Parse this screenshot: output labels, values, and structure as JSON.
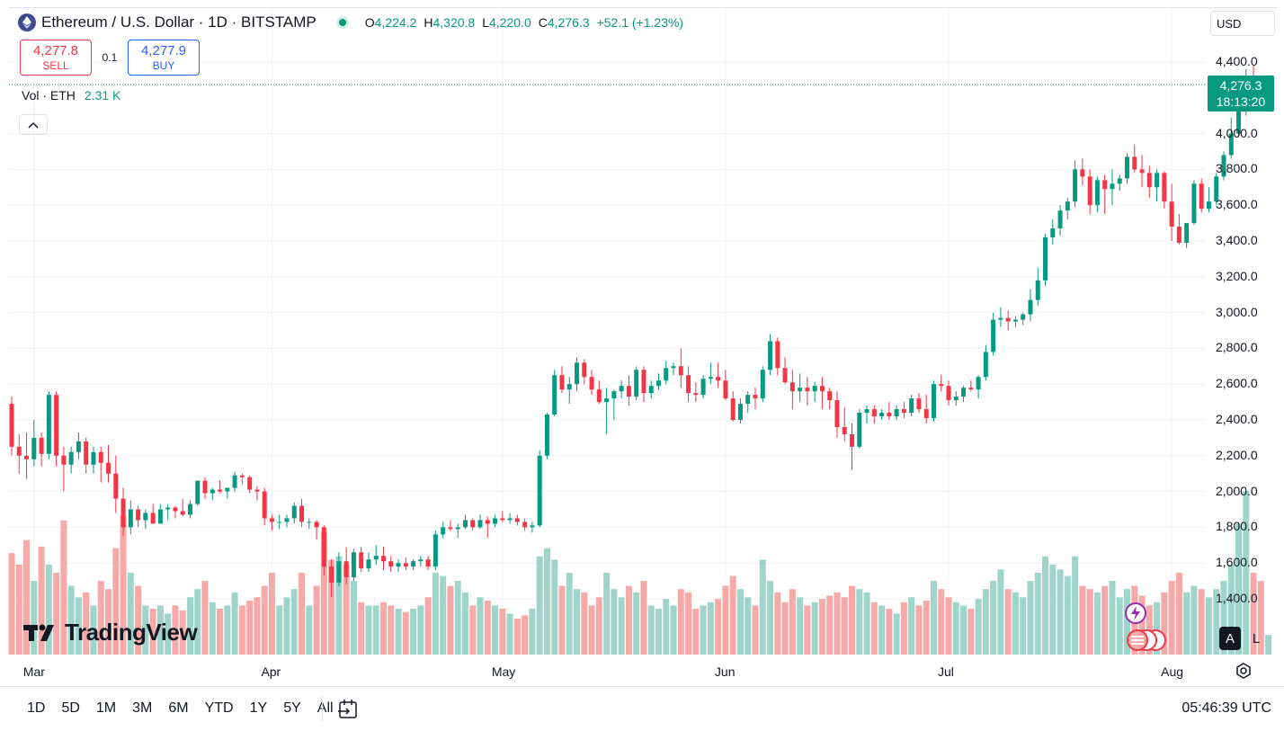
{
  "header": {
    "title": "Ethereum / U.S. Dollar · 1D · BITSTAMP",
    "open_key": "O",
    "open": "4,224.2",
    "high_key": "H",
    "high": "4,320.8",
    "low_key": "L",
    "low": "4,220.0",
    "close_key": "C",
    "close": "4,276.3",
    "change": "+52.1 (+1.23%)"
  },
  "trade": {
    "sell_price": "4,277.8",
    "sell_label": "SELL",
    "spread": "0.1",
    "buy_price": "4,277.9",
    "buy_label": "BUY"
  },
  "volume": {
    "label": "Vol · ETH",
    "value": "2.31 K"
  },
  "currency": "USD",
  "last_price": {
    "price": "4,276.3",
    "countdown": "18:13:20"
  },
  "logo_text": "TradingView",
  "scale_buttons": {
    "auto": "A",
    "log": "L"
  },
  "toolbar": {
    "ranges": [
      "1D",
      "5D",
      "1M",
      "3M",
      "6M",
      "YTD",
      "1Y",
      "5Y",
      "All"
    ],
    "clock": "05:46:39 UTC"
  },
  "colors": {
    "up": "#089981",
    "down": "#f23645",
    "up_vol": "#9fd4cb",
    "down_vol": "#f7a9a7"
  },
  "chart_data": {
    "type": "candlestick",
    "interval": "1D",
    "y_ticks": [
      "4,400.0",
      "4,000.0",
      "3,800.0",
      "3,600.0",
      "3,400.0",
      "3,200.0",
      "3,000.0",
      "2,800.0",
      "2,600.0",
      "2,400.0",
      "2,200.0",
      "2,000.0",
      "1,800.0",
      "1,600.0",
      "1,400.0"
    ],
    "y_tick_values": [
      4400,
      4000,
      3800,
      3600,
      3400,
      3200,
      3000,
      2800,
      2600,
      2400,
      2200,
      2000,
      1800,
      1600,
      1400
    ],
    "x_ticks": [
      "Mar",
      "Apr",
      "May",
      "Jun",
      "Jul",
      "Aug"
    ],
    "x_tick_index": [
      3,
      35,
      66,
      96,
      126,
      156
    ],
    "ylim": [
      1200,
      4500
    ],
    "grid": true,
    "candles": [
      [
        2490,
        2530,
        2200,
        2250,
        0.62
      ],
      [
        2250,
        2320,
        2100,
        2200,
        0.55
      ],
      [
        2200,
        2330,
        2070,
        2180,
        0.7
      ],
      [
        2180,
        2400,
        2140,
        2300,
        0.45
      ],
      [
        2300,
        2330,
        2140,
        2210,
        0.66
      ],
      [
        2210,
        2560,
        2180,
        2540,
        0.55
      ],
      [
        2540,
        2560,
        2140,
        2200,
        0.5
      ],
      [
        2200,
        2250,
        2000,
        2150,
        0.82
      ],
      [
        2150,
        2250,
        2100,
        2220,
        0.42
      ],
      [
        2220,
        2330,
        2180,
        2280,
        0.35
      ],
      [
        2280,
        2300,
        2100,
        2150,
        0.38
      ],
      [
        2150,
        2250,
        2100,
        2220,
        0.3
      ],
      [
        2220,
        2250,
        2050,
        2160,
        0.45
      ],
      [
        2160,
        2260,
        2050,
        2100,
        0.4
      ],
      [
        2100,
        2200,
        1880,
        1960,
        0.65
      ],
      [
        1960,
        2020,
        1750,
        1800,
        0.85
      ],
      [
        1800,
        1950,
        1760,
        1900,
        0.5
      ],
      [
        1900,
        1920,
        1800,
        1840,
        0.42
      ],
      [
        1840,
        1900,
        1790,
        1880,
        0.3
      ],
      [
        1880,
        1930,
        1820,
        1820,
        0.28
      ],
      [
        1820,
        1930,
        1820,
        1900,
        0.3
      ],
      [
        1900,
        1930,
        1840,
        1910,
        0.25
      ],
      [
        1910,
        1920,
        1850,
        1890,
        0.3
      ],
      [
        1890,
        1960,
        1860,
        1870,
        0.27
      ],
      [
        1870,
        1950,
        1850,
        1930,
        0.35
      ],
      [
        1930,
        2060,
        1920,
        2060,
        0.4
      ],
      [
        2060,
        2080,
        1960,
        1990,
        0.45
      ],
      [
        1990,
        2020,
        1950,
        2010,
        0.32
      ],
      [
        2010,
        2060,
        1990,
        2000,
        0.28
      ],
      [
        2000,
        2020,
        1960,
        2020,
        0.3
      ],
      [
        2020,
        2110,
        2000,
        2090,
        0.38
      ],
      [
        2090,
        2100,
        2040,
        2080,
        0.3
      ],
      [
        2080,
        2090,
        1990,
        2010,
        0.33
      ],
      [
        2010,
        2030,
        1950,
        2000,
        0.35
      ],
      [
        2000,
        2020,
        1810,
        1850,
        0.42
      ],
      [
        1850,
        1870,
        1780,
        1830,
        0.5
      ],
      [
        1830,
        1870,
        1790,
        1830,
        0.3
      ],
      [
        1830,
        1870,
        1800,
        1850,
        0.35
      ],
      [
        1850,
        1940,
        1820,
        1920,
        0.4
      ],
      [
        1920,
        1960,
        1800,
        1830,
        0.5
      ],
      [
        1830,
        1850,
        1790,
        1830,
        0.3
      ],
      [
        1830,
        1840,
        1730,
        1800,
        0.42
      ],
      [
        1800,
        1810,
        1530,
        1580,
        0.75
      ],
      [
        1580,
        1620,
        1410,
        1490,
        0.58
      ],
      [
        1490,
        1660,
        1470,
        1610,
        0.6
      ],
      [
        1610,
        1690,
        1480,
        1520,
        0.55
      ],
      [
        1520,
        1680,
        1500,
        1660,
        0.45
      ],
      [
        1660,
        1690,
        1550,
        1570,
        0.32
      ],
      [
        1570,
        1660,
        1550,
        1620,
        0.3
      ],
      [
        1620,
        1700,
        1590,
        1640,
        0.3
      ],
      [
        1640,
        1690,
        1560,
        1610,
        0.32
      ],
      [
        1610,
        1640,
        1550,
        1580,
        0.3
      ],
      [
        1580,
        1620,
        1550,
        1600,
        0.28
      ],
      [
        1600,
        1630,
        1560,
        1580,
        0.26
      ],
      [
        1580,
        1620,
        1560,
        1610,
        0.28
      ],
      [
        1610,
        1640,
        1580,
        1620,
        0.3
      ],
      [
        1620,
        1640,
        1560,
        1580,
        0.35
      ],
      [
        1580,
        1780,
        1560,
        1760,
        0.5
      ],
      [
        1760,
        1830,
        1740,
        1800,
        0.48
      ],
      [
        1800,
        1840,
        1780,
        1790,
        0.42
      ],
      [
        1790,
        1820,
        1740,
        1800,
        0.45
      ],
      [
        1800,
        1870,
        1790,
        1840,
        0.38
      ],
      [
        1840,
        1850,
        1780,
        1800,
        0.3
      ],
      [
        1800,
        1870,
        1790,
        1840,
        0.35
      ],
      [
        1840,
        1860,
        1740,
        1820,
        0.33
      ],
      [
        1820,
        1870,
        1800,
        1850,
        0.3
      ],
      [
        1850,
        1890,
        1830,
        1840,
        0.28
      ],
      [
        1840,
        1880,
        1820,
        1850,
        0.25
      ],
      [
        1850,
        1870,
        1810,
        1830,
        0.22
      ],
      [
        1830,
        1850,
        1780,
        1800,
        0.24
      ],
      [
        1800,
        1830,
        1770,
        1810,
        0.28
      ],
      [
        1810,
        2230,
        1800,
        2200,
        0.6
      ],
      [
        2200,
        2440,
        2180,
        2430,
        0.65
      ],
      [
        2430,
        2680,
        2420,
        2650,
        0.58
      ],
      [
        2650,
        2700,
        2550,
        2570,
        0.42
      ],
      [
        2570,
        2640,
        2490,
        2600,
        0.5
      ],
      [
        2600,
        2750,
        2560,
        2720,
        0.4
      ],
      [
        2720,
        2740,
        2600,
        2640,
        0.38
      ],
      [
        2640,
        2680,
        2540,
        2570,
        0.3
      ],
      [
        2570,
        2620,
        2490,
        2500,
        0.35
      ],
      [
        2500,
        2580,
        2320,
        2520,
        0.5
      ],
      [
        2520,
        2570,
        2400,
        2560,
        0.4
      ],
      [
        2560,
        2620,
        2520,
        2590,
        0.35
      ],
      [
        2590,
        2650,
        2480,
        2530,
        0.42
      ],
      [
        2530,
        2700,
        2510,
        2680,
        0.38
      ],
      [
        2680,
        2700,
        2500,
        2550,
        0.45
      ],
      [
        2550,
        2620,
        2520,
        2590,
        0.3
      ],
      [
        2590,
        2660,
        2570,
        2620,
        0.28
      ],
      [
        2620,
        2730,
        2600,
        2690,
        0.34
      ],
      [
        2690,
        2720,
        2650,
        2700,
        0.3
      ],
      [
        2700,
        2800,
        2580,
        2650,
        0.4
      ],
      [
        2650,
        2700,
        2500,
        2550,
        0.38
      ],
      [
        2550,
        2610,
        2500,
        2540,
        0.28
      ],
      [
        2540,
        2650,
        2520,
        2630,
        0.3
      ],
      [
        2630,
        2720,
        2600,
        2640,
        0.32
      ],
      [
        2640,
        2720,
        2580,
        2620,
        0.34
      ],
      [
        2620,
        2680,
        2510,
        2520,
        0.42
      ],
      [
        2520,
        2560,
        2390,
        2400,
        0.48
      ],
      [
        2400,
        2520,
        2380,
        2490,
        0.4
      ],
      [
        2490,
        2560,
        2440,
        2540,
        0.35
      ],
      [
        2540,
        2580,
        2460,
        2520,
        0.3
      ],
      [
        2520,
        2700,
        2500,
        2680,
        0.58
      ],
      [
        2680,
        2880,
        2650,
        2840,
        0.45
      ],
      [
        2840,
        2860,
        2650,
        2690,
        0.38
      ],
      [
        2690,
        2750,
        2600,
        2610,
        0.32
      ],
      [
        2610,
        2680,
        2460,
        2560,
        0.4
      ],
      [
        2560,
        2660,
        2500,
        2580,
        0.35
      ],
      [
        2580,
        2640,
        2480,
        2560,
        0.3
      ],
      [
        2560,
        2610,
        2500,
        2590,
        0.32
      ],
      [
        2590,
        2640,
        2460,
        2560,
        0.34
      ],
      [
        2560,
        2580,
        2460,
        2510,
        0.36
      ],
      [
        2510,
        2560,
        2300,
        2360,
        0.38
      ],
      [
        2360,
        2470,
        2280,
        2320,
        0.35
      ],
      [
        2320,
        2380,
        2120,
        2250,
        0.42
      ],
      [
        2250,
        2460,
        2240,
        2440,
        0.4
      ],
      [
        2440,
        2480,
        2380,
        2460,
        0.38
      ],
      [
        2460,
        2480,
        2380,
        2420,
        0.32
      ],
      [
        2420,
        2460,
        2400,
        2440,
        0.3
      ],
      [
        2440,
        2500,
        2400,
        2420,
        0.28
      ],
      [
        2420,
        2480,
        2400,
        2460,
        0.25
      ],
      [
        2460,
        2500,
        2410,
        2440,
        0.32
      ],
      [
        2440,
        2540,
        2420,
        2520,
        0.35
      ],
      [
        2520,
        2550,
        2440,
        2460,
        0.3
      ],
      [
        2460,
        2540,
        2380,
        2410,
        0.33
      ],
      [
        2410,
        2620,
        2390,
        2600,
        0.45
      ],
      [
        2600,
        2650,
        2560,
        2590,
        0.4
      ],
      [
        2590,
        2620,
        2480,
        2510,
        0.35
      ],
      [
        2510,
        2560,
        2480,
        2530,
        0.32
      ],
      [
        2530,
        2590,
        2500,
        2580,
        0.3
      ],
      [
        2580,
        2620,
        2560,
        2570,
        0.28
      ],
      [
        2570,
        2650,
        2520,
        2640,
        0.34
      ],
      [
        2640,
        2820,
        2620,
        2780,
        0.4
      ],
      [
        2780,
        3000,
        2760,
        2960,
        0.45
      ],
      [
        2960,
        3030,
        2920,
        2970,
        0.52
      ],
      [
        2970,
        3010,
        2900,
        2950,
        0.4
      ],
      [
        2950,
        2980,
        2920,
        2960,
        0.38
      ],
      [
        2960,
        3000,
        2930,
        2990,
        0.35
      ],
      [
        2990,
        3130,
        2950,
        3070,
        0.45
      ],
      [
        3070,
        3250,
        3040,
        3180,
        0.5
      ],
      [
        3180,
        3440,
        3150,
        3420,
        0.6
      ],
      [
        3420,
        3520,
        3380,
        3470,
        0.55
      ],
      [
        3470,
        3600,
        3430,
        3570,
        0.52
      ],
      [
        3570,
        3640,
        3520,
        3620,
        0.48
      ],
      [
        3620,
        3850,
        3590,
        3800,
        0.6
      ],
      [
        3800,
        3860,
        3710,
        3760,
        0.42
      ],
      [
        3760,
        3800,
        3550,
        3600,
        0.4
      ],
      [
        3600,
        3760,
        3560,
        3740,
        0.38
      ],
      [
        3740,
        3770,
        3550,
        3690,
        0.42
      ],
      [
        3690,
        3800,
        3600,
        3720,
        0.45
      ],
      [
        3720,
        3770,
        3680,
        3750,
        0.35
      ],
      [
        3750,
        3890,
        3720,
        3870,
        0.4
      ],
      [
        3870,
        3940,
        3780,
        3800,
        0.42
      ],
      [
        3800,
        3880,
        3700,
        3780,
        0.36
      ],
      [
        3780,
        3820,
        3640,
        3700,
        0.3
      ],
      [
        3700,
        3800,
        3620,
        3780,
        0.32
      ],
      [
        3780,
        3790,
        3580,
        3620,
        0.38
      ],
      [
        3620,
        3720,
        3400,
        3480,
        0.45
      ],
      [
        3480,
        3550,
        3380,
        3390,
        0.5
      ],
      [
        3390,
        3480,
        3360,
        3500,
        0.38
      ],
      [
        3500,
        3740,
        3490,
        3720,
        0.42
      ],
      [
        3720,
        3750,
        3560,
        3580,
        0.4
      ],
      [
        3580,
        3700,
        3560,
        3620,
        0.35
      ],
      [
        3620,
        3780,
        3600,
        3760,
        0.4
      ],
      [
        3760,
        3900,
        3740,
        3880,
        0.45
      ],
      [
        3880,
        4090,
        3860,
        4000,
        0.55
      ],
      [
        4000,
        4210,
        3980,
        4200,
        0.8
      ],
      [
        4200,
        4360,
        4100,
        4300,
        1.0
      ],
      [
        4300,
        4380,
        4200,
        4250,
        0.5
      ],
      [
        4250,
        4320,
        4160,
        4224,
        0.45
      ],
      [
        4224,
        4321,
        4220,
        4276,
        0.12
      ]
    ]
  }
}
